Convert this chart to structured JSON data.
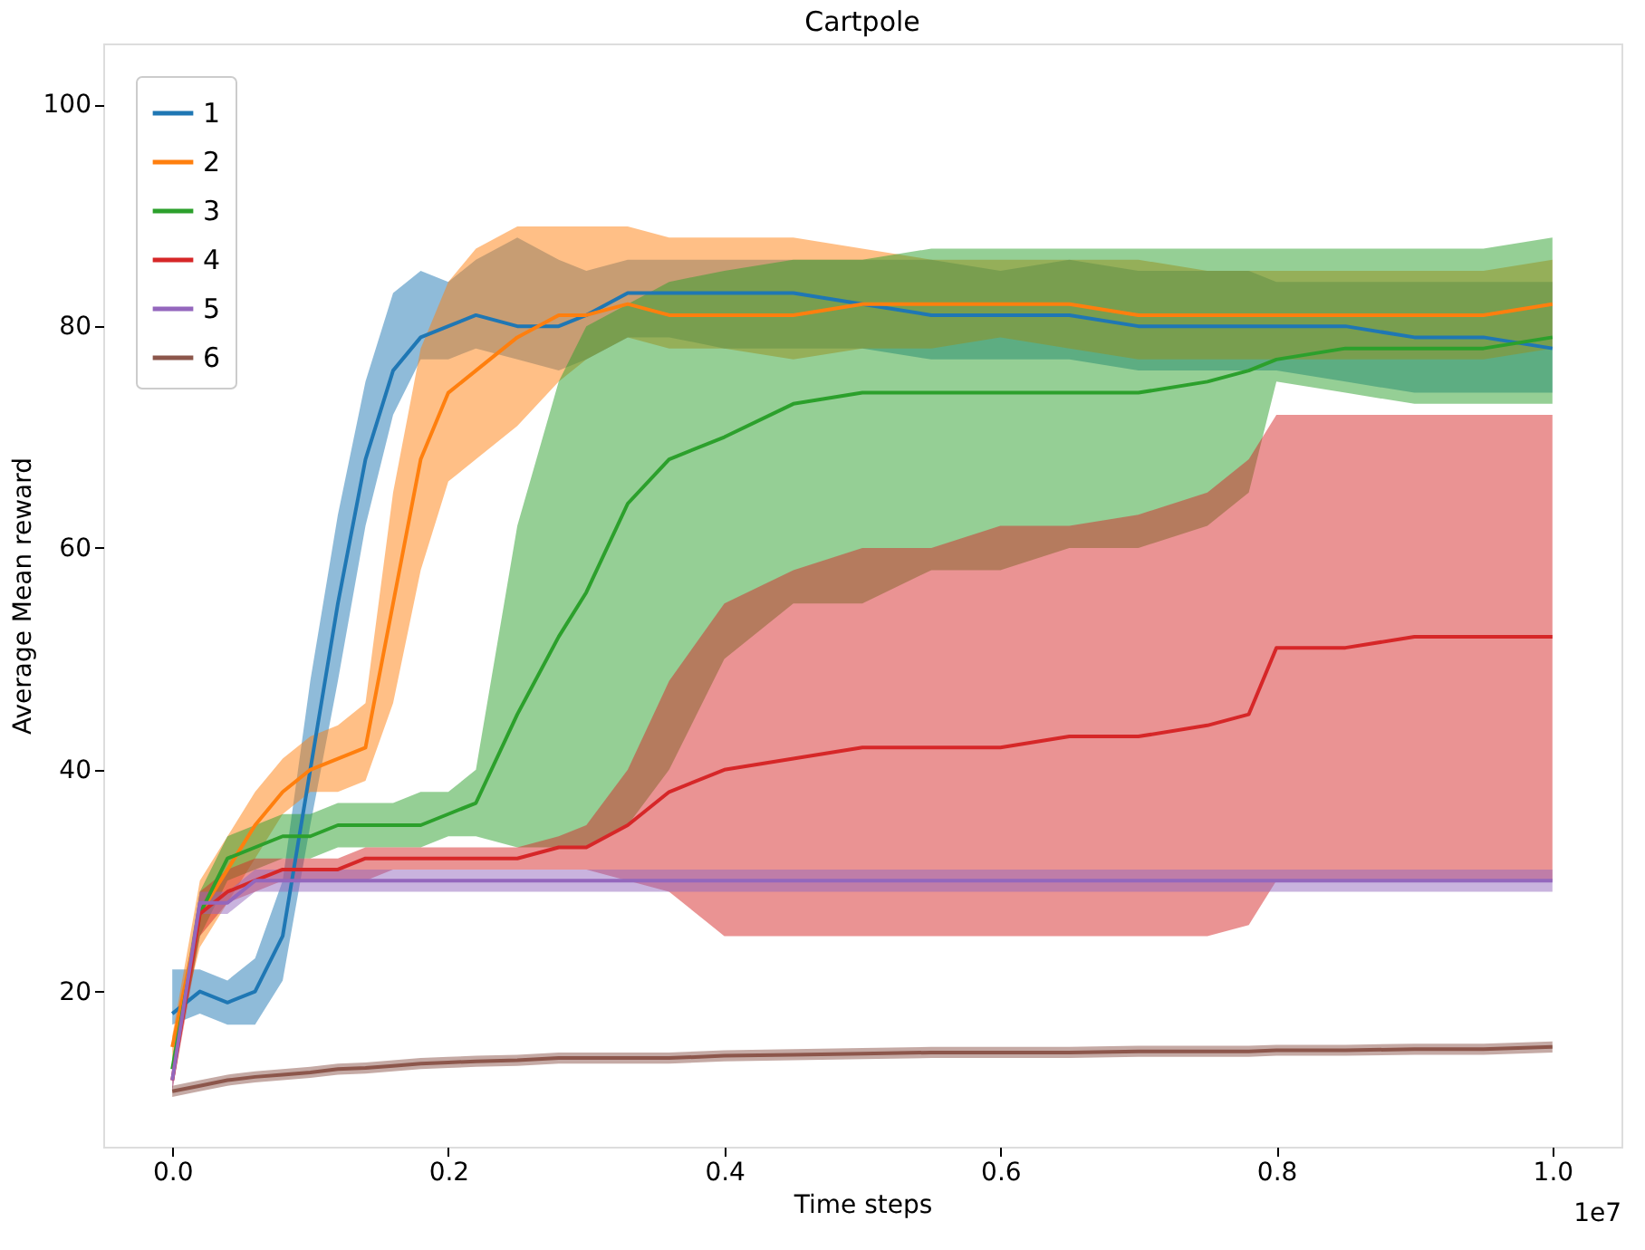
{
  "chart_data": {
    "type": "line",
    "title": "Cartpole",
    "xlabel": "Time steps",
    "ylabel": "Average Mean reward",
    "annotations": [
      "1e7"
    ],
    "x": [
      0,
      0.02,
      0.04,
      0.06,
      0.08,
      0.1,
      0.12,
      0.14,
      0.16,
      0.18,
      0.2,
      0.22,
      0.25,
      0.28,
      0.3,
      0.33,
      0.36,
      0.4,
      0.45,
      0.5,
      0.55,
      0.6,
      0.65,
      0.7,
      0.75,
      0.78,
      0.8,
      0.85,
      0.9,
      0.95,
      1.0
    ],
    "xlim": [
      -0.05,
      1.05
    ],
    "ylim": [
      6,
      105.5
    ],
    "xticks": [
      {
        "value": 0,
        "label": "0.0"
      },
      {
        "value": 0.2,
        "label": "0.2"
      },
      {
        "value": 0.4,
        "label": "0.4"
      },
      {
        "value": 0.6,
        "label": "0.6"
      },
      {
        "value": 0.8,
        "label": "0.8"
      },
      {
        "value": 1.0,
        "label": "1.0"
      }
    ],
    "yticks": [
      20,
      40,
      60,
      80,
      100
    ],
    "grid": false,
    "legend": "top left",
    "marker": "none",
    "line_style": "solid",
    "series": [
      {
        "name": "1",
        "color": "#1f77b4",
        "values": [
          18,
          20,
          19,
          20,
          25,
          40,
          55,
          68,
          76,
          79,
          80,
          81,
          80,
          80,
          81,
          83,
          83,
          83,
          83,
          82,
          81,
          81,
          81,
          80,
          80,
          80,
          80,
          80,
          79,
          79,
          78
        ],
        "lower": [
          17,
          18,
          17,
          17,
          21,
          35,
          48,
          62,
          72,
          77,
          77,
          78,
          77,
          76,
          77,
          79,
          79,
          78,
          78,
          78,
          77,
          77,
          77,
          76,
          76,
          76,
          76,
          75,
          74,
          74,
          74
        ],
        "upper": [
          22,
          22,
          21,
          23,
          30,
          48,
          63,
          75,
          83,
          85,
          84,
          86,
          88,
          86,
          85,
          86,
          86,
          86,
          86,
          86,
          86,
          85,
          86,
          85,
          85,
          85,
          84,
          84,
          84,
          84,
          84
        ]
      },
      {
        "name": "2",
        "color": "#ff7f0e",
        "values": [
          15,
          27,
          31,
          35,
          38,
          40,
          41,
          42,
          55,
          68,
          74,
          76,
          79,
          81,
          81,
          82,
          81,
          81,
          81,
          82,
          82,
          82,
          82,
          81,
          81,
          81,
          81,
          81,
          81,
          81,
          82
        ],
        "lower": [
          14,
          24,
          28,
          32,
          36,
          38,
          38,
          39,
          46,
          58,
          66,
          68,
          71,
          75,
          77,
          79,
          78,
          78,
          77,
          78,
          78,
          79,
          78,
          77,
          77,
          77,
          77,
          77,
          77,
          77,
          78
        ],
        "upper": [
          16,
          30,
          34,
          38,
          41,
          43,
          44,
          46,
          65,
          78,
          84,
          87,
          89,
          89,
          89,
          89,
          88,
          88,
          88,
          87,
          86,
          86,
          86,
          86,
          85,
          85,
          85,
          85,
          85,
          85,
          86
        ]
      },
      {
        "name": "3",
        "color": "#2ca02c",
        "values": [
          13,
          27,
          32,
          33,
          34,
          34,
          35,
          35,
          35,
          35,
          36,
          37,
          45,
          52,
          56,
          64,
          68,
          70,
          73,
          74,
          74,
          74,
          74,
          74,
          75,
          76,
          77,
          78,
          78,
          78,
          79
        ],
        "lower": [
          12,
          25,
          30,
          31,
          32,
          32,
          33,
          33,
          33,
          33,
          34,
          34,
          33,
          33,
          33,
          35,
          40,
          50,
          55,
          55,
          58,
          58,
          60,
          60,
          62,
          65,
          75,
          74,
          73,
          73,
          73
        ],
        "upper": [
          14,
          29,
          34,
          35,
          36,
          36,
          37,
          37,
          37,
          38,
          38,
          40,
          62,
          75,
          80,
          82,
          84,
          85,
          86,
          86,
          87,
          87,
          87,
          87,
          87,
          87,
          87,
          87,
          87,
          87,
          88
        ]
      },
      {
        "name": "4",
        "color": "#d62728",
        "values": [
          12,
          27,
          29,
          30,
          31,
          31,
          31,
          32,
          32,
          32,
          32,
          32,
          32,
          33,
          33,
          35,
          38,
          40,
          41,
          42,
          42,
          42,
          43,
          43,
          44,
          45,
          51,
          51,
          52,
          52,
          52
        ],
        "lower": [
          11,
          25,
          28,
          29,
          30,
          30,
          30,
          30,
          31,
          31,
          31,
          31,
          31,
          31,
          31,
          30,
          29,
          25,
          25,
          25,
          25,
          25,
          25,
          25,
          25,
          26,
          30,
          30,
          30,
          30,
          30
        ],
        "upper": [
          13,
          29,
          31,
          32,
          32,
          32,
          32,
          33,
          33,
          33,
          33,
          33,
          33,
          34,
          35,
          40,
          48,
          55,
          58,
          60,
          60,
          62,
          62,
          63,
          65,
          68,
          72,
          72,
          72,
          72,
          72
        ]
      },
      {
        "name": "5",
        "color": "#9467bd",
        "values": [
          12,
          28,
          28,
          30,
          30,
          30,
          30,
          30,
          30,
          30,
          30,
          30,
          30,
          30,
          30,
          30,
          30,
          30,
          30,
          30,
          30,
          30,
          30,
          30,
          30,
          30,
          30,
          30,
          30,
          30,
          30
        ],
        "lower": [
          11,
          27,
          27,
          29,
          29,
          29,
          29,
          29,
          29,
          29,
          29,
          29,
          29,
          29,
          29,
          29,
          29,
          29,
          29,
          29,
          29,
          29,
          29,
          29,
          29,
          29,
          29,
          29,
          29,
          29,
          29
        ],
        "upper": [
          13,
          29,
          29,
          31,
          31,
          31,
          31,
          31,
          31,
          31,
          31,
          31,
          31,
          31,
          31,
          31,
          31,
          31,
          31,
          31,
          31,
          31,
          31,
          31,
          31,
          31,
          31,
          31,
          31,
          31,
          31
        ]
      },
      {
        "name": "6",
        "color": "#8c564b",
        "values": [
          11,
          11.5,
          12,
          12.3,
          12.5,
          12.7,
          13,
          13.1,
          13.3,
          13.5,
          13.6,
          13.7,
          13.8,
          14,
          14,
          14,
          14,
          14.2,
          14.3,
          14.4,
          14.5,
          14.5,
          14.5,
          14.6,
          14.6,
          14.6,
          14.7,
          14.7,
          14.8,
          14.8,
          15
        ],
        "lower": [
          10.5,
          11,
          11.5,
          11.8,
          12,
          12.2,
          12.5,
          12.6,
          12.8,
          13,
          13.1,
          13.2,
          13.3,
          13.5,
          13.5,
          13.5,
          13.5,
          13.7,
          13.8,
          13.9,
          14,
          14,
          14,
          14.1,
          14.1,
          14.1,
          14.2,
          14.2,
          14.3,
          14.3,
          14.5
        ],
        "upper": [
          11.5,
          12,
          12.5,
          12.8,
          13,
          13.2,
          13.5,
          13.6,
          13.8,
          14,
          14.1,
          14.2,
          14.3,
          14.5,
          14.5,
          14.5,
          14.5,
          14.7,
          14.8,
          14.9,
          15,
          15,
          15,
          15.1,
          15.1,
          15.1,
          15.2,
          15.2,
          15.3,
          15.3,
          15.5
        ]
      }
    ]
  }
}
